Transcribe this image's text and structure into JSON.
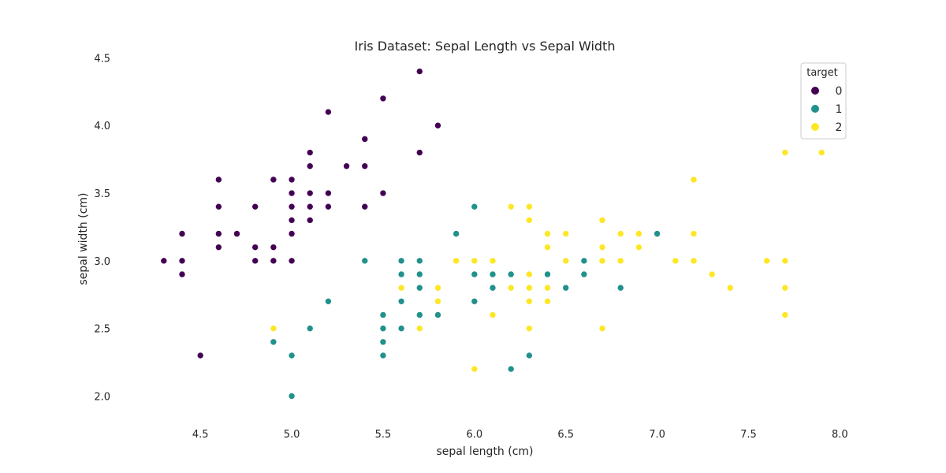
{
  "chart_data": {
    "type": "scatter",
    "title": "Iris Dataset: Sepal Length vs Sepal Width",
    "xlabel": "sepal length (cm)",
    "ylabel": "sepal width (cm)",
    "xlim": [
      4.18,
      8.02
    ],
    "ylim": [
      1.88,
      4.52
    ],
    "xticks": [
      4.5,
      5.0,
      5.5,
      6.0,
      6.5,
      7.0,
      7.5,
      8.0
    ],
    "xtick_labels": [
      "4.5",
      "5.0",
      "5.5",
      "6.0",
      "6.5",
      "7.0",
      "7.5",
      "8.0"
    ],
    "yticks": [
      2.0,
      2.5,
      3.0,
      3.5,
      4.0,
      4.5
    ],
    "ytick_labels": [
      "2.0",
      "2.5",
      "3.0",
      "3.5",
      "4.0",
      "4.5"
    ],
    "grid": false,
    "legend": {
      "title": "target",
      "placement": "top-right"
    },
    "series": [
      {
        "name": "0",
        "color": "#440154",
        "points": [
          [
            4.3,
            3.0
          ],
          [
            4.4,
            3.2
          ],
          [
            4.4,
            3.0
          ],
          [
            4.4,
            2.9
          ],
          [
            4.5,
            2.3
          ],
          [
            4.6,
            3.6
          ],
          [
            4.6,
            3.4
          ],
          [
            4.6,
            3.2
          ],
          [
            4.6,
            3.1
          ],
          [
            4.7,
            3.2
          ],
          [
            4.8,
            3.4
          ],
          [
            4.8,
            3.1
          ],
          [
            4.8,
            3.0
          ],
          [
            4.9,
            3.6
          ],
          [
            4.9,
            3.1
          ],
          [
            4.9,
            3.0
          ],
          [
            5.0,
            3.6
          ],
          [
            5.0,
            3.5
          ],
          [
            5.0,
            3.4
          ],
          [
            5.0,
            3.3
          ],
          [
            5.0,
            3.2
          ],
          [
            5.0,
            3.0
          ],
          [
            5.1,
            3.8
          ],
          [
            5.1,
            3.7
          ],
          [
            5.1,
            3.5
          ],
          [
            5.1,
            3.4
          ],
          [
            5.1,
            3.3
          ],
          [
            5.2,
            4.1
          ],
          [
            5.2,
            3.5
          ],
          [
            5.2,
            3.4
          ],
          [
            5.3,
            3.7
          ],
          [
            5.4,
            3.9
          ],
          [
            5.4,
            3.7
          ],
          [
            5.4,
            3.4
          ],
          [
            5.5,
            4.2
          ],
          [
            5.5,
            3.5
          ],
          [
            5.7,
            4.4
          ],
          [
            5.7,
            3.8
          ],
          [
            5.8,
            4.0
          ]
        ]
      },
      {
        "name": "1",
        "color": "#21918c",
        "points": [
          [
            4.9,
            2.4
          ],
          [
            5.0,
            2.3
          ],
          [
            5.0,
            2.0
          ],
          [
            5.1,
            2.5
          ],
          [
            5.2,
            2.7
          ],
          [
            5.4,
            3.0
          ],
          [
            5.5,
            2.6
          ],
          [
            5.5,
            2.5
          ],
          [
            5.5,
            2.4
          ],
          [
            5.5,
            2.3
          ],
          [
            5.6,
            3.0
          ],
          [
            5.6,
            2.9
          ],
          [
            5.6,
            2.7
          ],
          [
            5.6,
            2.5
          ],
          [
            5.7,
            3.0
          ],
          [
            5.7,
            2.9
          ],
          [
            5.7,
            2.8
          ],
          [
            5.7,
            2.6
          ],
          [
            5.8,
            2.6
          ],
          [
            5.9,
            3.2
          ],
          [
            6.0,
            3.4
          ],
          [
            6.0,
            2.9
          ],
          [
            6.0,
            2.7
          ],
          [
            6.1,
            2.9
          ],
          [
            6.1,
            2.8
          ],
          [
            6.2,
            2.9
          ],
          [
            6.2,
            2.2
          ],
          [
            6.3,
            2.3
          ],
          [
            6.4,
            2.9
          ],
          [
            6.5,
            2.8
          ],
          [
            6.6,
            3.0
          ],
          [
            6.6,
            2.9
          ],
          [
            6.8,
            2.8
          ],
          [
            7.0,
            3.2
          ]
        ]
      },
      {
        "name": "2",
        "color": "#fde725",
        "points": [
          [
            4.9,
            2.5
          ],
          [
            5.6,
            2.8
          ],
          [
            5.7,
            2.5
          ],
          [
            5.8,
            2.8
          ],
          [
            5.8,
            2.7
          ],
          [
            5.9,
            3.0
          ],
          [
            6.0,
            3.0
          ],
          [
            6.0,
            2.2
          ],
          [
            6.1,
            3.0
          ],
          [
            6.1,
            2.6
          ],
          [
            6.2,
            3.4
          ],
          [
            6.2,
            2.8
          ],
          [
            6.3,
            3.4
          ],
          [
            6.3,
            3.3
          ],
          [
            6.3,
            2.9
          ],
          [
            6.3,
            2.8
          ],
          [
            6.3,
            2.7
          ],
          [
            6.3,
            2.5
          ],
          [
            6.4,
            3.2
          ],
          [
            6.4,
            3.1
          ],
          [
            6.4,
            2.8
          ],
          [
            6.4,
            2.7
          ],
          [
            6.5,
            3.2
          ],
          [
            6.5,
            3.0
          ],
          [
            6.7,
            3.3
          ],
          [
            6.7,
            3.1
          ],
          [
            6.7,
            3.0
          ],
          [
            6.7,
            2.5
          ],
          [
            6.8,
            3.2
          ],
          [
            6.8,
            3.0
          ],
          [
            6.9,
            3.2
          ],
          [
            6.9,
            3.1
          ],
          [
            7.1,
            3.0
          ],
          [
            7.2,
            3.6
          ],
          [
            7.2,
            3.2
          ],
          [
            7.2,
            3.0
          ],
          [
            7.3,
            2.9
          ],
          [
            7.4,
            2.8
          ],
          [
            7.6,
            3.0
          ],
          [
            7.7,
            3.8
          ],
          [
            7.7,
            3.0
          ],
          [
            7.7,
            2.8
          ],
          [
            7.7,
            2.6
          ],
          [
            7.9,
            3.8
          ]
        ]
      }
    ]
  }
}
